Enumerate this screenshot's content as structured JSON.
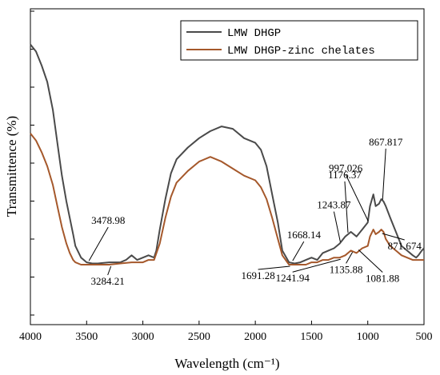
{
  "chart_data": {
    "type": "line",
    "xlabel": "Wavelength (cm⁻¹)",
    "ylabel": "Transmittence (%)",
    "xlim": [
      4000,
      500
    ],
    "x_reversed": true,
    "ylim": [
      0,
      100
    ],
    "y_ticks_labeled": false,
    "x_ticks": [
      4000,
      3500,
      3000,
      2500,
      2000,
      1500,
      1000,
      500
    ],
    "x_tick_labels": [
      "4000",
      "3500",
      "3000",
      "2500",
      "2000",
      "1500",
      "1000",
      "500"
    ],
    "grid": false,
    "legend_position": "top-right",
    "series": [
      {
        "name": "LMW DHGP",
        "color": "#4a4a4a",
        "points": [
          [
            4000,
            94
          ],
          [
            3950,
            91
          ],
          [
            3900,
            85
          ],
          [
            3850,
            78
          ],
          [
            3800,
            66
          ],
          [
            3760,
            52
          ],
          [
            3720,
            38
          ],
          [
            3680,
            27
          ],
          [
            3650,
            20
          ],
          [
            3620,
            13
          ],
          [
            3600,
            8
          ],
          [
            3550,
            3
          ],
          [
            3500,
            1
          ],
          [
            3450,
            0.5
          ],
          [
            3400,
            0.5
          ],
          [
            3300,
            1
          ],
          [
            3200,
            1
          ],
          [
            3150,
            2
          ],
          [
            3100,
            4
          ],
          [
            3050,
            2
          ],
          [
            3000,
            3
          ],
          [
            2950,
            4
          ],
          [
            2900,
            3
          ],
          [
            2880,
            6
          ],
          [
            2850,
            15
          ],
          [
            2800,
            28
          ],
          [
            2750,
            39
          ],
          [
            2700,
            45
          ],
          [
            2600,
            50
          ],
          [
            2500,
            54
          ],
          [
            2400,
            57
          ],
          [
            2300,
            59
          ],
          [
            2200,
            58
          ],
          [
            2100,
            54
          ],
          [
            2000,
            52
          ],
          [
            1950,
            49
          ],
          [
            1900,
            42
          ],
          [
            1850,
            30
          ],
          [
            1800,
            18
          ],
          [
            1760,
            6
          ],
          [
            1700,
            1
          ],
          [
            1650,
            0.5
          ],
          [
            1600,
            1
          ],
          [
            1550,
            2
          ],
          [
            1500,
            3
          ],
          [
            1450,
            2
          ],
          [
            1400,
            5
          ],
          [
            1350,
            6
          ],
          [
            1300,
            7
          ],
          [
            1250,
            9
          ],
          [
            1200,
            12
          ],
          [
            1150,
            14
          ],
          [
            1100,
            12
          ],
          [
            1050,
            15
          ],
          [
            1000,
            18
          ],
          [
            980,
            25
          ],
          [
            950,
            30
          ],
          [
            930,
            25
          ],
          [
            900,
            26
          ],
          [
            880,
            28
          ],
          [
            860,
            27
          ],
          [
            840,
            25
          ],
          [
            800,
            20
          ],
          [
            750,
            14
          ],
          [
            700,
            8
          ],
          [
            650,
            6
          ],
          [
            600,
            4
          ],
          [
            570,
            3
          ],
          [
            550,
            4
          ],
          [
            520,
            6
          ],
          [
            500,
            7
          ]
        ]
      },
      {
        "name": "LMW DHGP-zinc chelates",
        "color": "#a5582b",
        "points": [
          [
            4000,
            56
          ],
          [
            3950,
            53
          ],
          [
            3900,
            48
          ],
          [
            3850,
            42
          ],
          [
            3800,
            34
          ],
          [
            3760,
            25
          ],
          [
            3720,
            16
          ],
          [
            3680,
            9
          ],
          [
            3650,
            5
          ],
          [
            3620,
            2
          ],
          [
            3600,
            1
          ],
          [
            3550,
            0
          ],
          [
            3500,
            0
          ],
          [
            3400,
            0
          ],
          [
            3300,
            0
          ],
          [
            3200,
            0.5
          ],
          [
            3100,
            1
          ],
          [
            3000,
            1
          ],
          [
            2950,
            2
          ],
          [
            2900,
            2
          ],
          [
            2850,
            9
          ],
          [
            2800,
            20
          ],
          [
            2750,
            29
          ],
          [
            2700,
            35
          ],
          [
            2600,
            40
          ],
          [
            2500,
            44
          ],
          [
            2400,
            46
          ],
          [
            2300,
            44
          ],
          [
            2200,
            41
          ],
          [
            2100,
            38
          ],
          [
            2000,
            36
          ],
          [
            1950,
            33
          ],
          [
            1900,
            28
          ],
          [
            1850,
            20
          ],
          [
            1800,
            11
          ],
          [
            1760,
            4
          ],
          [
            1700,
            0
          ],
          [
            1650,
            0
          ],
          [
            1600,
            0
          ],
          [
            1550,
            0
          ],
          [
            1500,
            1
          ],
          [
            1450,
            1
          ],
          [
            1400,
            2
          ],
          [
            1350,
            2
          ],
          [
            1300,
            3
          ],
          [
            1250,
            3
          ],
          [
            1200,
            4
          ],
          [
            1150,
            6
          ],
          [
            1100,
            5
          ],
          [
            1050,
            7
          ],
          [
            1000,
            8
          ],
          [
            980,
            12
          ],
          [
            950,
            15
          ],
          [
            930,
            13
          ],
          [
            900,
            14
          ],
          [
            880,
            15
          ],
          [
            860,
            14
          ],
          [
            840,
            11
          ],
          [
            800,
            8
          ],
          [
            750,
            6
          ],
          [
            700,
            4
          ],
          [
            650,
            3
          ],
          [
            600,
            2
          ],
          [
            550,
            2
          ],
          [
            500,
            2
          ]
        ]
      }
    ],
    "annotations": [
      {
        "text": "3478.98",
        "x": 3479,
        "y": 1
      },
      {
        "text": "3284.21",
        "x": 3284,
        "y": 0
      },
      {
        "text": "1668.14",
        "x": 1668,
        "y": 1
      },
      {
        "text": "1691.28",
        "x": 1691,
        "y": 0
      },
      {
        "text": "1243.87",
        "x": 1244,
        "y": 9
      },
      {
        "text": "1176.37",
        "x": 1176,
        "y": 13
      },
      {
        "text": "1241.94",
        "x": 1242,
        "y": 3
      },
      {
        "text": "1135.88",
        "x": 1136,
        "y": 6
      },
      {
        "text": "997.026",
        "x": 997,
        "y": 18
      },
      {
        "text": "867.817",
        "x": 868,
        "y": 27
      },
      {
        "text": "871.674",
        "x": 872,
        "y": 14
      },
      {
        "text": "1081.88",
        "x": 1082,
        "y": 7
      }
    ]
  }
}
